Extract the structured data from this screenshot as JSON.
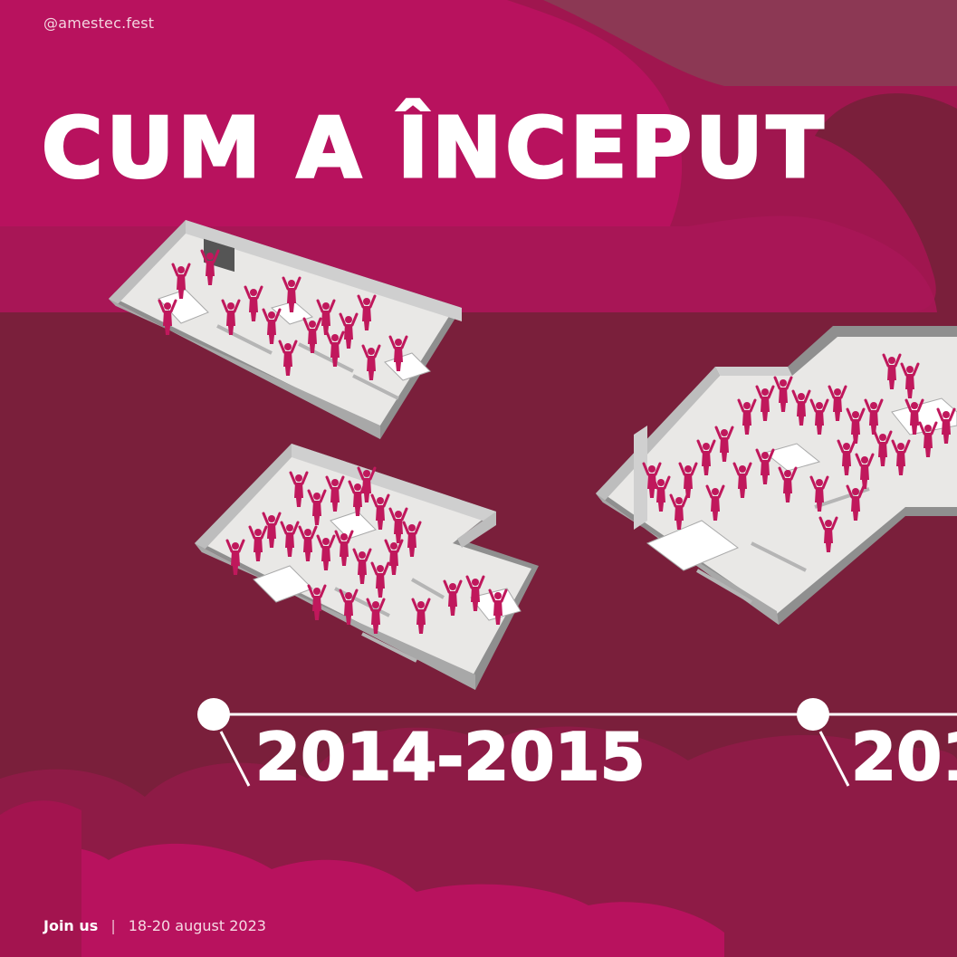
{
  "header": {
    "handle": "@amestec.fest"
  },
  "title": "CUM A ÎNCEPUT",
  "timeline": {
    "years": [
      "2014-2015",
      "201"
    ]
  },
  "footer": {
    "join_label": "Join us",
    "separator": "|",
    "dates": "18-20 august 2023"
  },
  "colors": {
    "background_dark": "#7a1f3b",
    "accent_pink": "#b8125e",
    "people": "#c0185c",
    "text": "#ffffff"
  },
  "illustrations": [
    "floor-plan-small",
    "floor-plan-medium",
    "floor-plan-large"
  ]
}
